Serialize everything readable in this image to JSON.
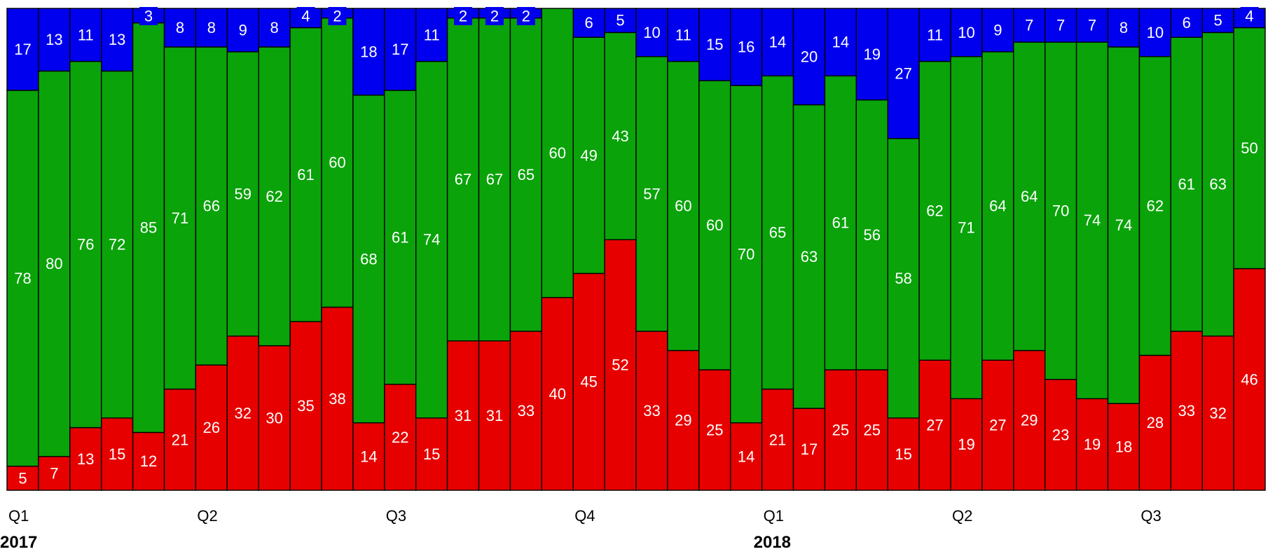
{
  "chart_data": {
    "type": "bar",
    "stacked": true,
    "normalized": true,
    "bar_count": 40,
    "series": [
      {
        "name": "",
        "color": "#e60000",
        "values": [
          5,
          7,
          13,
          15,
          12,
          21,
          26,
          32,
          30,
          35,
          38,
          14,
          22,
          15,
          31,
          31,
          33,
          40,
          45,
          52,
          33,
          29,
          25,
          14,
          21,
          17,
          25,
          25,
          15,
          27,
          19,
          27,
          29,
          23,
          19,
          18,
          28,
          33,
          32,
          46
        ]
      },
      {
        "name": "",
        "color": "#0aa30a",
        "values": [
          78,
          80,
          76,
          72,
          85,
          71,
          66,
          59,
          62,
          61,
          60,
          68,
          61,
          74,
          67,
          67,
          65,
          60,
          49,
          43,
          57,
          60,
          60,
          70,
          65,
          63,
          61,
          56,
          58,
          62,
          71,
          64,
          64,
          70,
          74,
          74,
          62,
          61,
          63,
          50
        ]
      },
      {
        "name": "",
        "color": "#0000ee",
        "values": [
          17,
          13,
          11,
          13,
          3,
          8,
          8,
          9,
          8,
          4,
          2,
          18,
          17,
          11,
          2,
          2,
          2,
          0,
          6,
          5,
          10,
          11,
          15,
          16,
          14,
          20,
          14,
          19,
          27,
          11,
          10,
          9,
          7,
          7,
          7,
          8,
          10,
          6,
          5,
          4
        ]
      }
    ],
    "x_ticks": [
      {
        "label": "Q1",
        "index": 0
      },
      {
        "label": "Q2",
        "index": 6
      },
      {
        "label": "Q3",
        "index": 12
      },
      {
        "label": "Q4",
        "index": 18
      },
      {
        "label": "Q1",
        "index": 24
      },
      {
        "label": "Q2",
        "index": 30
      },
      {
        "label": "Q3",
        "index": 36
      }
    ],
    "year_labels": [
      {
        "label": "2017",
        "index": 0
      },
      {
        "label": "2018",
        "index": 24
      }
    ],
    "title": "",
    "xlabel": "",
    "ylabel": ""
  }
}
